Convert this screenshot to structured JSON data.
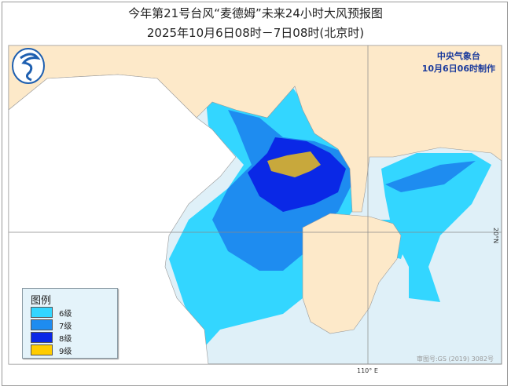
{
  "title": "今年第21号台风“麦德姆”未来24小时大风预报图",
  "subtitle": "2025年10月6日08时－7日08时(北京时)",
  "agency": {
    "name": "中央气象台",
    "issued": "10月6日06时制作",
    "logo": "cma-logo-icon"
  },
  "legend": {
    "title": "图例",
    "items": [
      {
        "label": "6级",
        "color": "#33d6ff"
      },
      {
        "label": "7级",
        "color": "#1e8cf0"
      },
      {
        "label": "8级",
        "color": "#0a28e6"
      },
      {
        "label": "9级",
        "color": "#ffcc00"
      }
    ]
  },
  "grid": {
    "longitude_label": "110° E",
    "latitude_label": "20°N"
  },
  "approval_number": "审图号:GS (2019) 3082号",
  "colors": {
    "land": "#fde9c9",
    "sea": "#dff0f8",
    "foreign_land": "#ffffff",
    "level9_map": "#c8a83c"
  }
}
